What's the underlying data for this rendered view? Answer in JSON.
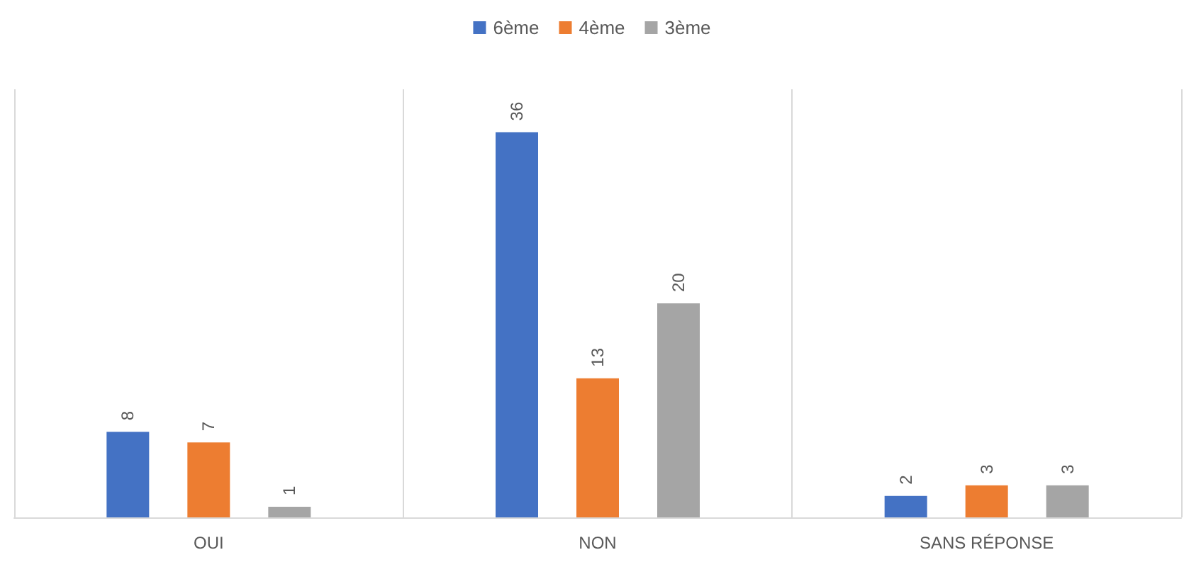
{
  "chart_data": {
    "type": "bar",
    "categories": [
      "OUI",
      "NON",
      "SANS RÉPONSE"
    ],
    "series": [
      {
        "name": "6ème",
        "color": "#4472c4",
        "values": [
          8,
          36,
          2
        ]
      },
      {
        "name": "4ème",
        "color": "#ed7d31",
        "values": [
          7,
          13,
          3
        ]
      },
      {
        "name": "3ème",
        "color": "#a5a5a5",
        "values": [
          1,
          20,
          3
        ]
      }
    ],
    "data_labels": true,
    "legend": "top",
    "grid": "x",
    "tick_labels": "x"
  }
}
